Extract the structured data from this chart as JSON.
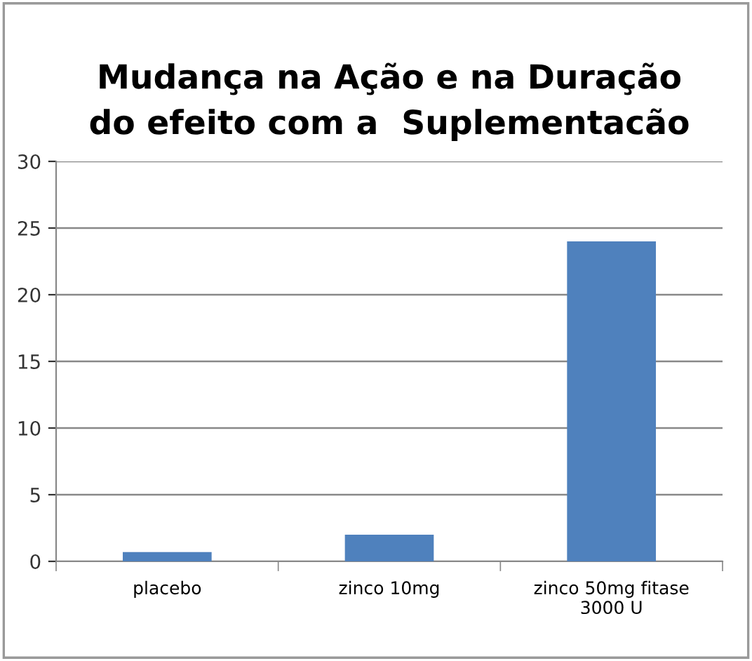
{
  "chart_data": {
    "type": "bar",
    "title": "Mudança na Ação e na Duração\ndo efeito com a  Suplementacão",
    "categories": [
      "placebo",
      "zinco 10mg",
      "zinco 50mg fitase\n3000 U"
    ],
    "values": [
      0.7,
      2,
      24
    ],
    "color": "#4f81bd",
    "ylim": [
      0,
      30
    ],
    "yticks": [
      0,
      5,
      10,
      15,
      20,
      25,
      30
    ],
    "grid": "y",
    "legend": false
  }
}
